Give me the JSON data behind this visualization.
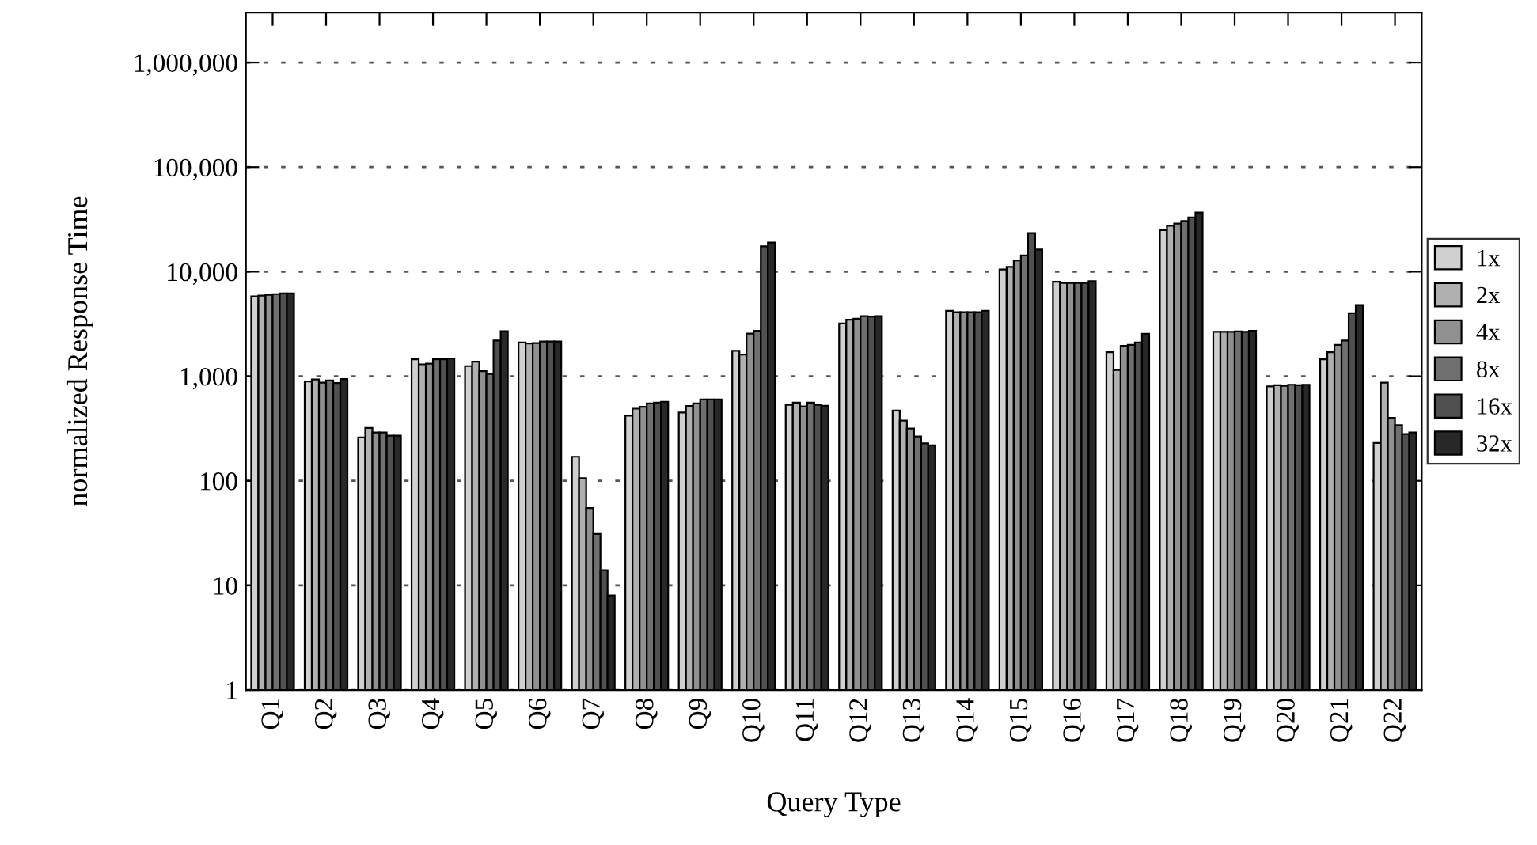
{
  "chart_data": {
    "type": "bar",
    "xlabel": "Query Type",
    "ylabel": "normalized Response Time",
    "categories": [
      "Q1",
      "Q2",
      "Q3",
      "Q4",
      "Q5",
      "Q6",
      "Q7",
      "Q8",
      "Q9",
      "Q10",
      "Q11",
      "Q12",
      "Q13",
      "Q14",
      "Q15",
      "Q16",
      "Q17",
      "Q18",
      "Q19",
      "Q20",
      "Q21",
      "Q22"
    ],
    "series": [
      {
        "name": "1x",
        "color": "#d0d0d0",
        "values": [
          5800,
          890,
          260,
          1450,
          1250,
          2100,
          170,
          420,
          450,
          1750,
          534,
          3200,
          470,
          4230,
          10500,
          8000,
          1700,
          25000,
          2660,
          800,
          1450,
          230
        ]
      },
      {
        "name": "2x",
        "color": "#b0b0b0",
        "values": [
          5900,
          930,
          320,
          1300,
          1380,
          2060,
          106,
          490,
          520,
          1610,
          559,
          3470,
          376,
          4090,
          11100,
          7800,
          1150,
          27500,
          2660,
          820,
          1700,
          870
        ]
      },
      {
        "name": "4x",
        "color": "#909090",
        "values": [
          6000,
          870,
          290,
          1320,
          1120,
          2080,
          55,
          510,
          550,
          2560,
          515,
          3550,
          316,
          4090,
          12800,
          7800,
          1950,
          28800,
          2660,
          810,
          2000,
          400
        ]
      },
      {
        "name": "8x",
        "color": "#707070",
        "values": [
          6100,
          910,
          290,
          1450,
          1050,
          2150,
          31,
          550,
          600,
          2720,
          559,
          3760,
          266,
          4090,
          14300,
          7800,
          2000,
          30500,
          2690,
          830,
          2200,
          340
        ]
      },
      {
        "name": "16x",
        "color": "#505050",
        "values": [
          6200,
          860,
          270,
          1450,
          2200,
          2150,
          14,
          560,
          600,
          17500,
          534,
          3720,
          228,
          4090,
          23400,
          7800,
          2100,
          33000,
          2660,
          820,
          4000,
          280
        ]
      },
      {
        "name": "32x",
        "color": "#282828",
        "values": [
          6200,
          940,
          270,
          1480,
          2700,
          2150,
          8,
          570,
          600,
          19000,
          521,
          3760,
          218,
          4230,
          16300,
          8100,
          2550,
          36800,
          2720,
          830,
          4800,
          290
        ]
      }
    ],
    "log": "y",
    "ylim": [
      1,
      3000000
    ],
    "yticks": [
      {
        "value": 1,
        "label": "1"
      },
      {
        "value": 10,
        "label": "10"
      },
      {
        "value": 100,
        "label": "100"
      },
      {
        "value": 1000,
        "label": "1,000"
      },
      {
        "value": 10000,
        "label": "10,000"
      },
      {
        "value": 100000,
        "label": "100,000"
      },
      {
        "value": 1000000,
        "label": "1,000,000"
      }
    ],
    "grid": "y",
    "legend": "right"
  }
}
